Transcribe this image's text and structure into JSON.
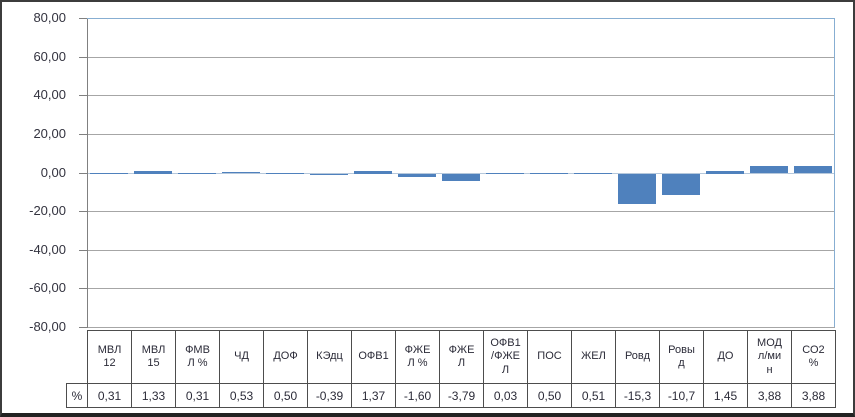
{
  "chart_data": {
    "type": "bar",
    "title": "",
    "series": [
      {
        "name": "%",
        "values": [
          0.31,
          1.33,
          0.31,
          0.53,
          0.5,
          -0.39,
          1.37,
          -1.6,
          -3.79,
          0.03,
          0.5,
          0.51,
          -15.3,
          -10.7,
          1.45,
          3.88,
          3.88
        ],
        "value_labels": [
          "0,31",
          "1,33",
          "0,31",
          "0,53",
          "0,50",
          "-0,39",
          "1,37",
          "-1,60",
          "-3,79",
          "0,03",
          "0,50",
          "0,51",
          "-15,3",
          "-10,7",
          "1,45",
          "3,88",
          "3,88"
        ]
      }
    ],
    "categories": [
      "МВЛ 12",
      "МВЛ 15",
      "ФМВЛ %",
      "ЧД",
      "ДОФ",
      "КЭдц",
      "ОФВ1",
      "ФЖЕЛ %",
      "ФЖЕЛ",
      "ОФВ1/ФЖЕЛ",
      "ПОС",
      "ЖЕЛ",
      "Ровд",
      "Ровыд",
      "ДО",
      "МОД л/мин",
      "СО2 %"
    ],
    "category_display": [
      "МВЛ\n12",
      "МВЛ\n15",
      "ФМВ\nЛ %",
      "ЧД",
      "ДОФ",
      "КЭдц",
      "ОФВ1",
      "ФЖЕ\nЛ %",
      "ФЖЕ\nЛ",
      "ОФВ1\n/ФЖЕ\nЛ",
      "ПОС",
      "ЖЕЛ",
      "Ровд",
      "Ровы\nд",
      "ДО",
      "МОД\nл/ми\nн",
      "СО2\n%"
    ],
    "xlabel": "",
    "ylabel": "",
    "ylim": [
      -80,
      80
    ],
    "y_tick_values": [
      80,
      60,
      40,
      20,
      0,
      -20,
      -40,
      -60,
      -80
    ],
    "y_tick_labels": [
      "80,00",
      "60,00",
      "40,00",
      "20,00",
      "0,00",
      "-20,00",
      "-40,00",
      "-60,00",
      "-80,00"
    ],
    "grid": true,
    "legend_position": "data-table-left",
    "bar_color": "#4F81BD",
    "gridline_color": "#a6a6a6",
    "zero_line_color": "#b6c8dc"
  }
}
